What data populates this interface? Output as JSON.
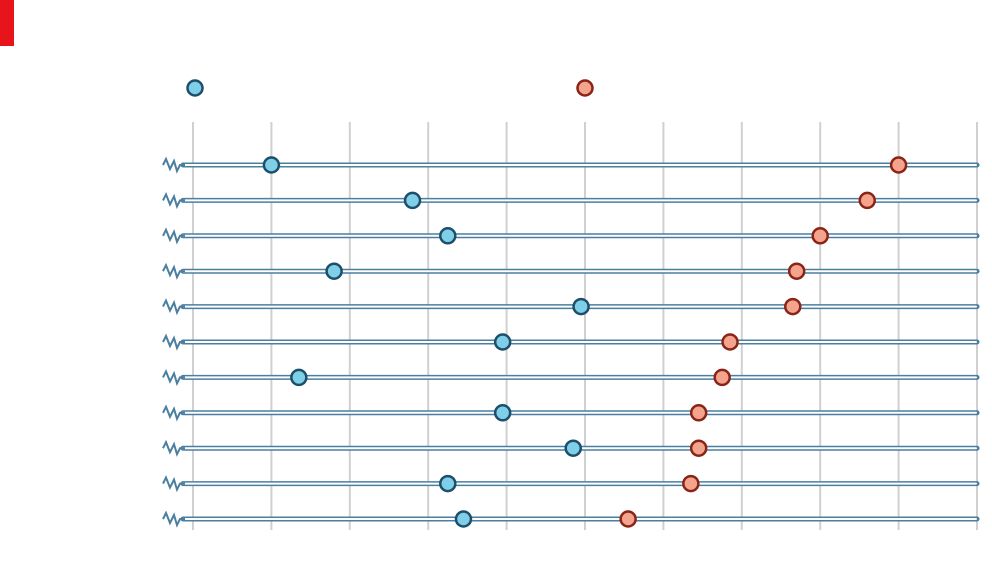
{
  "colors": {
    "accent": "#e8141c",
    "series1_fill": "#7fcfe8",
    "series1_stroke": "#1d4f6b",
    "series2_fill": "#f4a38c",
    "series2_stroke": "#8a2416",
    "grid": "#d0d0d0",
    "row_line": "#4a7fa0"
  },
  "chart_data": {
    "type": "scatter",
    "layout": "dumbbell",
    "axis_break": true,
    "grid": true,
    "legend_position": "top",
    "categories": [
      "",
      "",
      "",
      "",
      "",
      "",
      "",
      "",
      "",
      "",
      ""
    ],
    "series": [
      {
        "values": [
          2.0,
          5.6,
          6.5,
          3.6,
          9.9,
          7.9,
          2.7,
          7.9,
          9.7,
          6.5,
          6.9
        ]
      },
      {
        "values": [
          18.0,
          17.2,
          16.0,
          15.4,
          15.3,
          13.7,
          13.5,
          12.9,
          12.9,
          12.7,
          11.1
        ]
      }
    ],
    "xlim": [
      0,
      20
    ],
    "x_gridlines": [
      0,
      2,
      4,
      6,
      8,
      10,
      12,
      14,
      16,
      18,
      20
    ]
  }
}
